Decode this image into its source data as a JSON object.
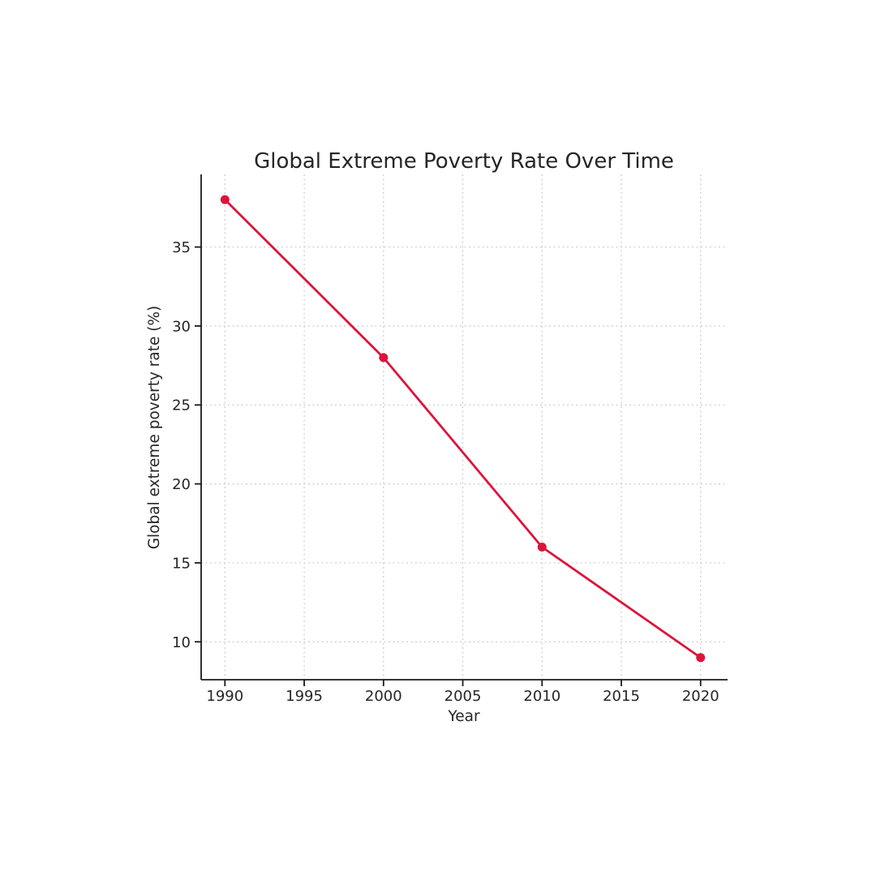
{
  "page": {
    "background": "#ffffff"
  },
  "chart_data": {
    "type": "line",
    "title": "Global Extreme Poverty Rate Over Time",
    "xlabel": "Year",
    "ylabel": "Global extreme poverty rate (%)",
    "x": [
      1990,
      2000,
      2010,
      2020
    ],
    "values": [
      38,
      28,
      16,
      9
    ],
    "series_name": "Global extreme poverty rate",
    "xticks": [
      1990,
      1995,
      2000,
      2005,
      2010,
      2015,
      2020
    ],
    "yticks": [
      10,
      15,
      20,
      25,
      30,
      35
    ],
    "xlim": [
      1988.5,
      2021.7
    ],
    "ylim": [
      7.6,
      39.6
    ],
    "grid": true,
    "legend": false,
    "line_color": "#DC143C",
    "marker": "circle",
    "grid_color": "#cccccc",
    "axis_color": "#1a1a1a",
    "text_color": "#262626"
  }
}
